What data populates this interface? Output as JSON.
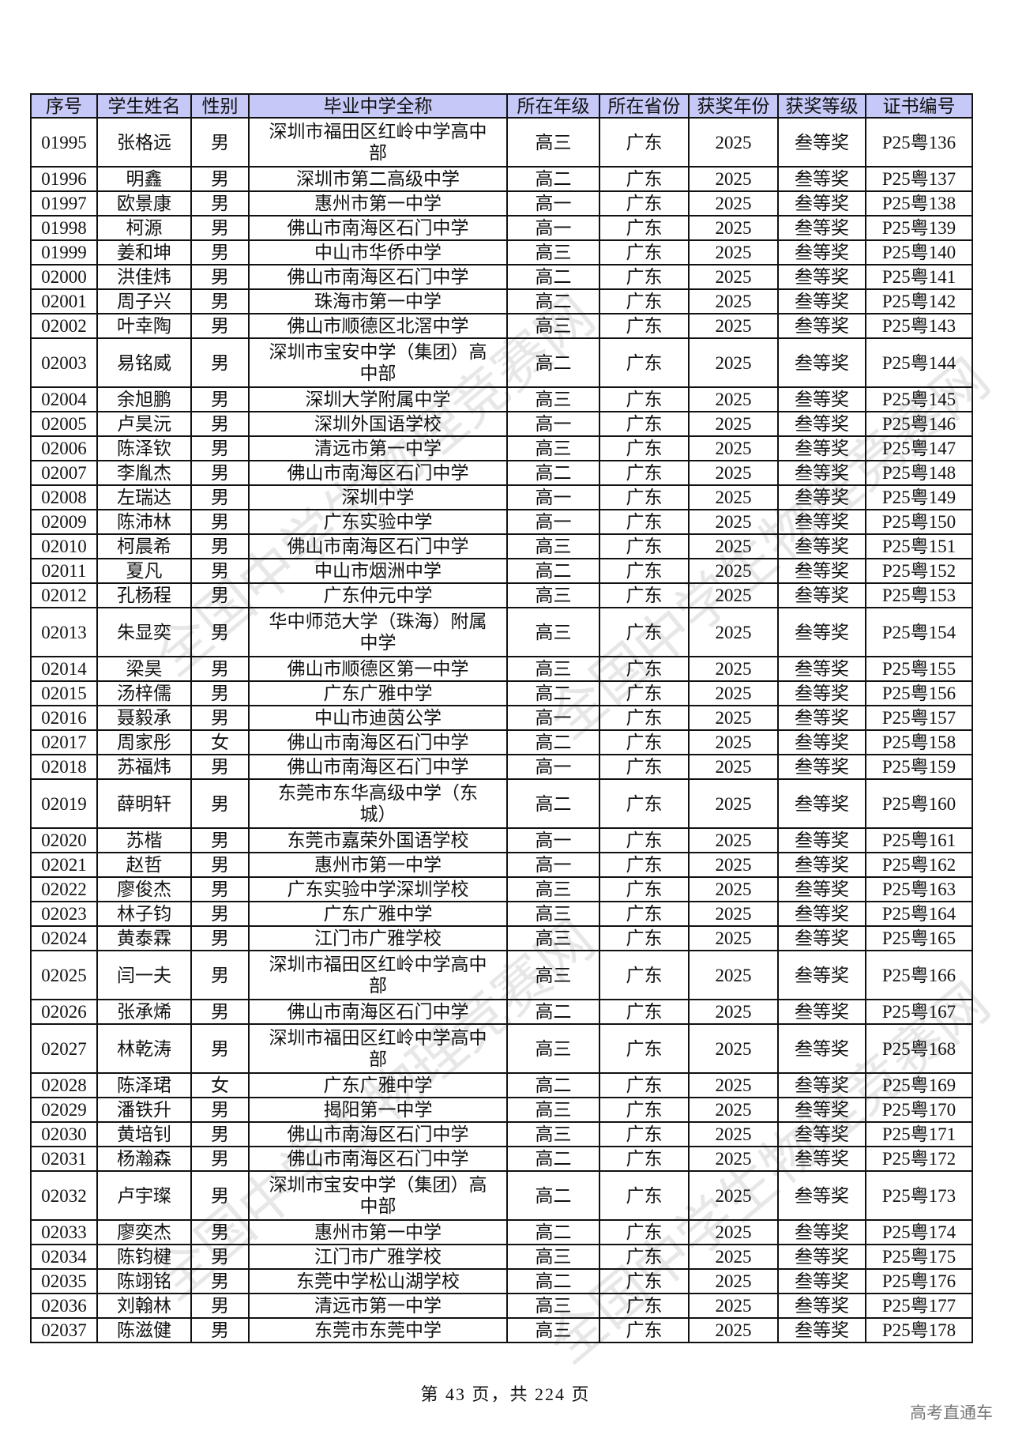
{
  "table": {
    "headers": [
      "序号",
      "学生姓名",
      "性别",
      "毕业中学全称",
      "所在年级",
      "所在省份",
      "获奖年份",
      "获奖等级",
      "证书编号"
    ],
    "rows": [
      [
        "01995",
        "张格远",
        "男",
        "深圳市福田区红岭中学高中部",
        "高三",
        "广东",
        "2025",
        "叁等奖",
        "P25粤136"
      ],
      [
        "01996",
        "明鑫",
        "男",
        "深圳市第二高级中学",
        "高二",
        "广东",
        "2025",
        "叁等奖",
        "P25粤137"
      ],
      [
        "01997",
        "欧景康",
        "男",
        "惠州市第一中学",
        "高一",
        "广东",
        "2025",
        "叁等奖",
        "P25粤138"
      ],
      [
        "01998",
        "柯源",
        "男",
        "佛山市南海区石门中学",
        "高一",
        "广东",
        "2025",
        "叁等奖",
        "P25粤139"
      ],
      [
        "01999",
        "姜和坤",
        "男",
        "中山市华侨中学",
        "高三",
        "广东",
        "2025",
        "叁等奖",
        "P25粤140"
      ],
      [
        "02000",
        "洪佳炜",
        "男",
        "佛山市南海区石门中学",
        "高二",
        "广东",
        "2025",
        "叁等奖",
        "P25粤141"
      ],
      [
        "02001",
        "周子兴",
        "男",
        "珠海市第一中学",
        "高二",
        "广东",
        "2025",
        "叁等奖",
        "P25粤142"
      ],
      [
        "02002",
        "叶幸陶",
        "男",
        "佛山市顺德区北滘中学",
        "高三",
        "广东",
        "2025",
        "叁等奖",
        "P25粤143"
      ],
      [
        "02003",
        "易铭威",
        "男",
        "深圳市宝安中学（集团）高中部",
        "高二",
        "广东",
        "2025",
        "叁等奖",
        "P25粤144"
      ],
      [
        "02004",
        "余旭鹏",
        "男",
        "深圳大学附属中学",
        "高三",
        "广东",
        "2025",
        "叁等奖",
        "P25粤145"
      ],
      [
        "02005",
        "卢昊沅",
        "男",
        "深圳外国语学校",
        "高一",
        "广东",
        "2025",
        "叁等奖",
        "P25粤146"
      ],
      [
        "02006",
        "陈泽钦",
        "男",
        "清远市第一中学",
        "高三",
        "广东",
        "2025",
        "叁等奖",
        "P25粤147"
      ],
      [
        "02007",
        "李胤杰",
        "男",
        "佛山市南海区石门中学",
        "高二",
        "广东",
        "2025",
        "叁等奖",
        "P25粤148"
      ],
      [
        "02008",
        "左瑞达",
        "男",
        "深圳中学",
        "高一",
        "广东",
        "2025",
        "叁等奖",
        "P25粤149"
      ],
      [
        "02009",
        "陈沛林",
        "男",
        "广东实验中学",
        "高一",
        "广东",
        "2025",
        "叁等奖",
        "P25粤150"
      ],
      [
        "02010",
        "柯晨希",
        "男",
        "佛山市南海区石门中学",
        "高三",
        "广东",
        "2025",
        "叁等奖",
        "P25粤151"
      ],
      [
        "02011",
        "夏凡",
        "男",
        "中山市烟洲中学",
        "高二",
        "广东",
        "2025",
        "叁等奖",
        "P25粤152"
      ],
      [
        "02012",
        "孔杨程",
        "男",
        "广东仲元中学",
        "高三",
        "广东",
        "2025",
        "叁等奖",
        "P25粤153"
      ],
      [
        "02013",
        "朱显奕",
        "男",
        "华中师范大学（珠海）附属中学",
        "高三",
        "广东",
        "2025",
        "叁等奖",
        "P25粤154"
      ],
      [
        "02014",
        "梁昊",
        "男",
        "佛山市顺德区第一中学",
        "高三",
        "广东",
        "2025",
        "叁等奖",
        "P25粤155"
      ],
      [
        "02015",
        "汤梓儒",
        "男",
        "广东广雅中学",
        "高二",
        "广东",
        "2025",
        "叁等奖",
        "P25粤156"
      ],
      [
        "02016",
        "聂毅承",
        "男",
        "中山市迪茵公学",
        "高一",
        "广东",
        "2025",
        "叁等奖",
        "P25粤157"
      ],
      [
        "02017",
        "周家彤",
        "女",
        "佛山市南海区石门中学",
        "高二",
        "广东",
        "2025",
        "叁等奖",
        "P25粤158"
      ],
      [
        "02018",
        "苏福炜",
        "男",
        "佛山市南海区石门中学",
        "高一",
        "广东",
        "2025",
        "叁等奖",
        "P25粤159"
      ],
      [
        "02019",
        "薛明轩",
        "男",
        "东莞市东华高级中学（东城）",
        "高二",
        "广东",
        "2025",
        "叁等奖",
        "P25粤160"
      ],
      [
        "02020",
        "苏楷",
        "男",
        "东莞市嘉荣外国语学校",
        "高一",
        "广东",
        "2025",
        "叁等奖",
        "P25粤161"
      ],
      [
        "02021",
        "赵哲",
        "男",
        "惠州市第一中学",
        "高一",
        "广东",
        "2025",
        "叁等奖",
        "P25粤162"
      ],
      [
        "02022",
        "廖俊杰",
        "男",
        "广东实验中学深圳学校",
        "高三",
        "广东",
        "2025",
        "叁等奖",
        "P25粤163"
      ],
      [
        "02023",
        "林子钧",
        "男",
        "广东广雅中学",
        "高三",
        "广东",
        "2025",
        "叁等奖",
        "P25粤164"
      ],
      [
        "02024",
        "黄泰霖",
        "男",
        "江门市广雅学校",
        "高三",
        "广东",
        "2025",
        "叁等奖",
        "P25粤165"
      ],
      [
        "02025",
        "闫一夫",
        "男",
        "深圳市福田区红岭中学高中部",
        "高三",
        "广东",
        "2025",
        "叁等奖",
        "P25粤166"
      ],
      [
        "02026",
        "张承烯",
        "男",
        "佛山市南海区石门中学",
        "高二",
        "广东",
        "2025",
        "叁等奖",
        "P25粤167"
      ],
      [
        "02027",
        "林乾涛",
        "男",
        "深圳市福田区红岭中学高中部",
        "高三",
        "广东",
        "2025",
        "叁等奖",
        "P25粤168"
      ],
      [
        "02028",
        "陈泽珺",
        "女",
        "广东广雅中学",
        "高二",
        "广东",
        "2025",
        "叁等奖",
        "P25粤169"
      ],
      [
        "02029",
        "潘铁升",
        "男",
        "揭阳第一中学",
        "高三",
        "广东",
        "2025",
        "叁等奖",
        "P25粤170"
      ],
      [
        "02030",
        "黄培钊",
        "男",
        "佛山市南海区石门中学",
        "高三",
        "广东",
        "2025",
        "叁等奖",
        "P25粤171"
      ],
      [
        "02031",
        "杨瀚森",
        "男",
        "佛山市南海区石门中学",
        "高二",
        "广东",
        "2025",
        "叁等奖",
        "P25粤172"
      ],
      [
        "02032",
        "卢宇璨",
        "男",
        "深圳市宝安中学（集团）高中部",
        "高二",
        "广东",
        "2025",
        "叁等奖",
        "P25粤173"
      ],
      [
        "02033",
        "廖奕杰",
        "男",
        "惠州市第一中学",
        "高二",
        "广东",
        "2025",
        "叁等奖",
        "P25粤174"
      ],
      [
        "02034",
        "陈钧楗",
        "男",
        "江门市广雅学校",
        "高三",
        "广东",
        "2025",
        "叁等奖",
        "P25粤175"
      ],
      [
        "02035",
        "陈翊铭",
        "男",
        "东莞中学松山湖学校",
        "高二",
        "广东",
        "2025",
        "叁等奖",
        "P25粤176"
      ],
      [
        "02036",
        "刘翰林",
        "男",
        "清远市第一中学",
        "高三",
        "广东",
        "2025",
        "叁等奖",
        "P25粤177"
      ],
      [
        "02037",
        "陈滋健",
        "男",
        "东莞市东莞中学",
        "高三",
        "广东",
        "2025",
        "叁等奖",
        "P25粤178"
      ]
    ]
  },
  "footer": {
    "page_info": "第 43 页，共 224 页"
  },
  "watermark": {
    "brand": "高考直通车",
    "text": "全国中学生物理竞赛网",
    "society": "中国物理学会 Chinese Physical Society"
  },
  "colors": {
    "header_bg": "#c6c8f7"
  }
}
